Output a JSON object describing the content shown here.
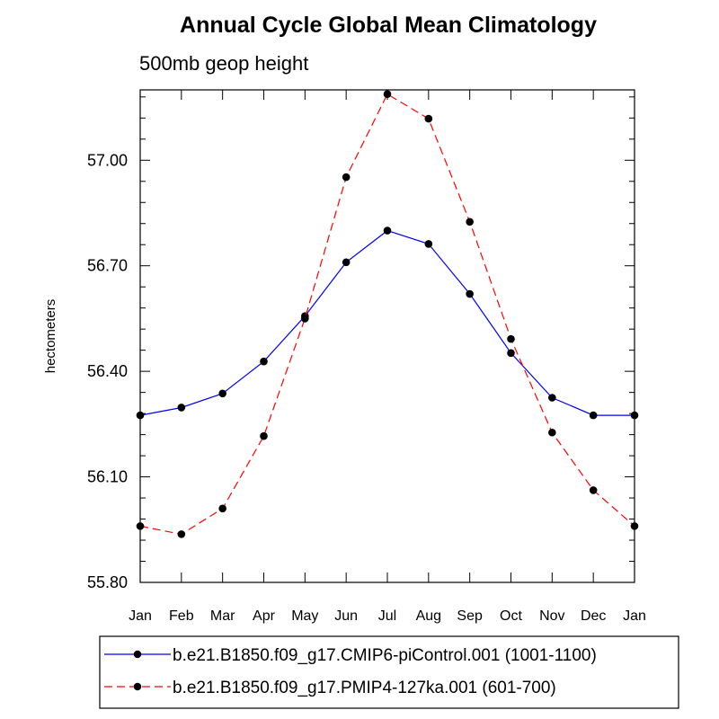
{
  "chart_data": {
    "type": "line",
    "title": "Annual Cycle Global Mean Climatology",
    "subtitle": "500mb geop height",
    "xlabel": "",
    "ylabel": "hectometers",
    "categories": [
      "Jan",
      "Feb",
      "Mar",
      "Apr",
      "May",
      "Jun",
      "Jul",
      "Aug",
      "Sep",
      "Oct",
      "Nov",
      "Dec",
      "Jan"
    ],
    "ylim": [
      55.8,
      57.2
    ],
    "yticks": [
      55.8,
      56.1,
      56.4,
      56.7,
      57.0
    ],
    "ytick_labels": [
      "55.80",
      "56.10",
      "56.40",
      "56.70",
      "57.00"
    ],
    "grid": false,
    "legend_position": "bottom",
    "series": [
      {
        "name": "b.e21.B1850.f09_g17.CMIP6-piControl.001 (1001-1100)",
        "color": "#0000ff",
        "dash": "solid",
        "values": [
          56.275,
          56.297,
          56.337,
          56.428,
          56.557,
          56.71,
          56.8,
          56.762,
          56.62,
          56.452,
          56.325,
          56.275,
          56.275
        ]
      },
      {
        "name": "b.e21.B1850.f09_g17.PMIP4-127ka.001 (601-700)",
        "color": "#ff0000",
        "dash": "dashed",
        "values": [
          55.96,
          55.937,
          56.01,
          56.216,
          56.55,
          56.952,
          57.188,
          57.118,
          56.825,
          56.492,
          56.226,
          56.062,
          55.96
        ]
      }
    ]
  }
}
